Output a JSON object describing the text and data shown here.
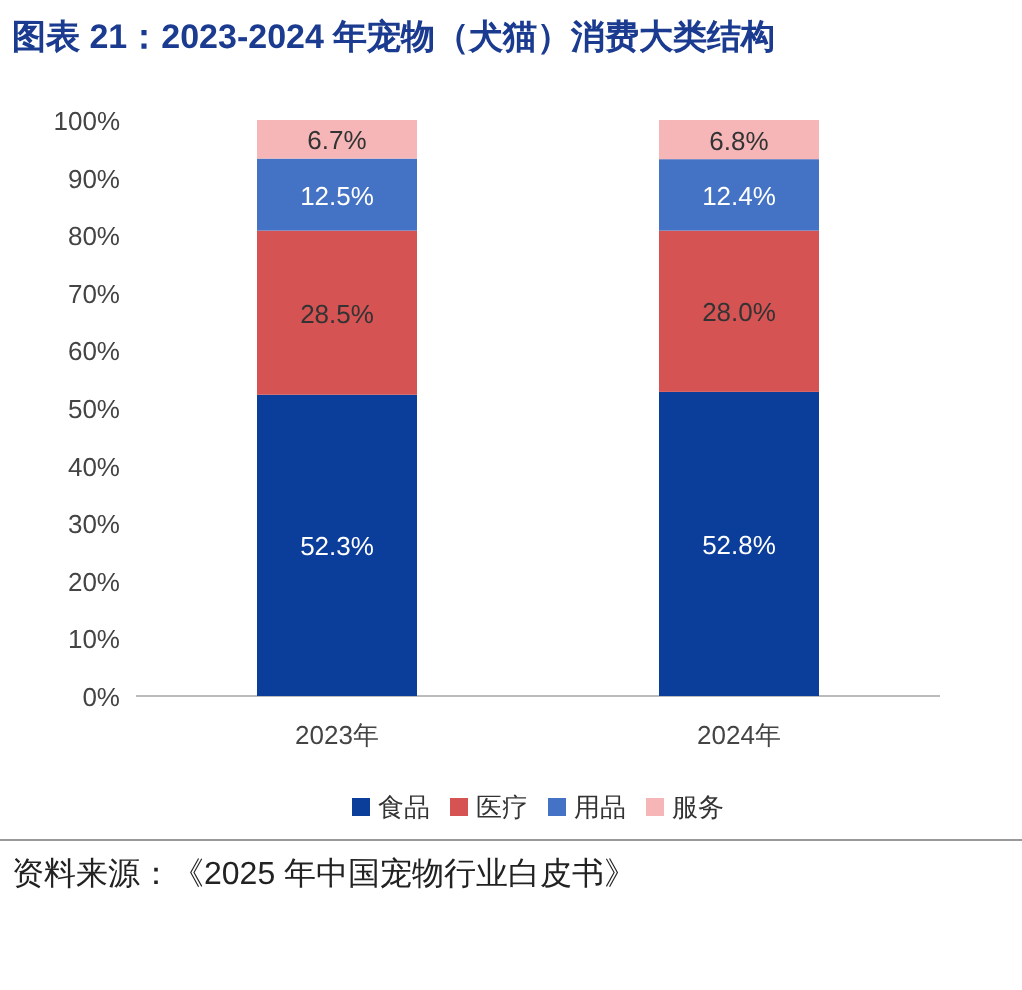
{
  "chart_data": {
    "type": "bar",
    "title": "图表 21：2023-2024 年宠物（犬猫）消费大类结构",
    "categories": [
      "2023年",
      "2024年"
    ],
    "stacked": true,
    "series": [
      {
        "name": "食品",
        "color": "#0b3d9b",
        "values": [
          52.3,
          52.8
        ],
        "value_labels": [
          "52.3%",
          "52.8%"
        ]
      },
      {
        "name": "医疗",
        "color": "#d65353",
        "values": [
          28.5,
          28.0
        ],
        "value_labels": [
          "28.5%",
          "28.0%"
        ]
      },
      {
        "name": "用品",
        "color": "#4472c4",
        "values": [
          12.5,
          12.4
        ],
        "value_labels": [
          "12.5%",
          "12.4%"
        ]
      },
      {
        "name": "服务",
        "color": "#f6b6b8",
        "values": [
          6.7,
          6.8
        ],
        "value_labels": [
          "6.7%",
          "6.8%"
        ]
      }
    ],
    "ylim": [
      0,
      100
    ],
    "yticks": [
      {
        "value": 0,
        "label": "0%"
      },
      {
        "value": 10,
        "label": "10%"
      },
      {
        "value": 20,
        "label": "20%"
      },
      {
        "value": 30,
        "label": "30%"
      },
      {
        "value": 40,
        "label": "40%"
      },
      {
        "value": 50,
        "label": "50%"
      },
      {
        "value": 60,
        "label": "60%"
      },
      {
        "value": 70,
        "label": "70%"
      },
      {
        "value": 80,
        "label": "80%"
      },
      {
        "value": 90,
        "label": "90%"
      },
      {
        "value": 100,
        "label": "100%"
      }
    ],
    "grid": false,
    "legend": "bottom",
    "annotations": [
      "资料来源：《2025 年中国宠物行业白皮书》"
    ]
  }
}
